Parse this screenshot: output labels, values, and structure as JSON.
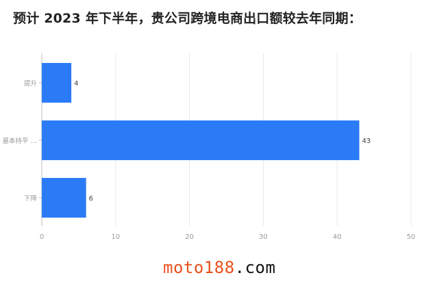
{
  "title": "预计 2023 年下半年，贵公司跨境电商出口额较去年同期：",
  "chart_data": {
    "type": "bar",
    "orientation": "horizontal",
    "categories": [
      "提升",
      "基本持平 …",
      "下降"
    ],
    "values": [
      4,
      43,
      6
    ],
    "xlim": [
      0,
      50
    ],
    "xticks": [
      0,
      10,
      20,
      30,
      40,
      50
    ],
    "grid": true,
    "bar_color": "#2b7bf6"
  },
  "watermark": {
    "part1": "moto188",
    "part2": ".com"
  }
}
